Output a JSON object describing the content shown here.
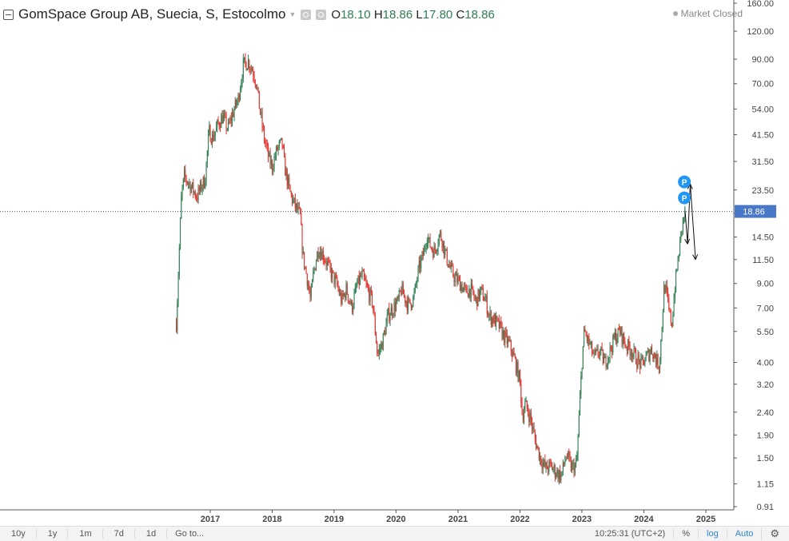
{
  "header": {
    "title": "GomSpace Group AB, Suecia, S, Estocolmo",
    "ohlc": [
      {
        "label": "O",
        "value": "18.10"
      },
      {
        "label": "H",
        "value": "18.86"
      },
      {
        "label": "L",
        "value": "17.80"
      },
      {
        "label": "C",
        "value": "18.86"
      }
    ],
    "status": "Market Closed"
  },
  "chart_data": {
    "type": "candlestick",
    "y_scale": "log",
    "y_ticks": [
      0.91,
      1.15,
      1.5,
      1.9,
      2.4,
      3.2,
      4.0,
      5.5,
      7.0,
      9.0,
      11.5,
      14.5,
      18.5,
      23.5,
      31.5,
      41.5,
      54.0,
      70.0,
      90.0,
      120.0,
      160.0
    ],
    "x_ticks": [
      {
        "label": "2017",
        "date": "2017-01-01"
      },
      {
        "label": "2018",
        "date": "2018-01-01"
      },
      {
        "label": "2019",
        "date": "2019-01-01"
      },
      {
        "label": "2020",
        "date": "2020-01-01"
      },
      {
        "label": "2021",
        "date": "2021-01-01"
      },
      {
        "label": "2022",
        "date": "2022-01-01"
      },
      {
        "label": "2023",
        "date": "2023-01-01"
      },
      {
        "label": "2024",
        "date": "2024-01-01"
      },
      {
        "label": "2025",
        "date": "2025-01-01"
      }
    ],
    "last_price": 18.86,
    "last_price_label": "18.86",
    "close_series": [
      [
        "2016-06-15",
        6.0
      ],
      [
        "2016-07-01",
        12
      ],
      [
        "2016-07-15",
        22
      ],
      [
        "2016-08-01",
        27
      ],
      [
        "2016-09-01",
        25
      ],
      [
        "2016-10-15",
        22
      ],
      [
        "2016-11-15",
        25
      ],
      [
        "2016-12-01",
        26
      ],
      [
        "2016-12-25",
        43
      ],
      [
        "2017-01-15",
        40
      ],
      [
        "2017-02-15",
        46
      ],
      [
        "2017-03-15",
        50
      ],
      [
        "2017-04-15",
        44
      ],
      [
        "2017-05-15",
        52
      ],
      [
        "2017-06-15",
        60
      ],
      [
        "2017-07-15",
        85
      ],
      [
        "2017-08-15",
        88
      ],
      [
        "2017-09-15",
        78
      ],
      [
        "2017-10-01",
        70
      ],
      [
        "2017-10-15",
        57
      ],
      [
        "2017-11-15",
        40
      ],
      [
        "2017-12-15",
        32
      ],
      [
        "2018-01-01",
        30
      ],
      [
        "2018-02-01",
        36
      ],
      [
        "2018-03-01",
        38
      ],
      [
        "2018-03-15",
        30
      ],
      [
        "2018-04-15",
        23
      ],
      [
        "2018-05-15",
        20
      ],
      [
        "2018-06-15",
        18
      ],
      [
        "2018-07-01",
        12
      ],
      [
        "2018-08-01",
        9
      ],
      [
        "2018-08-15",
        7.5
      ],
      [
        "2018-09-01",
        10
      ],
      [
        "2018-10-01",
        13
      ],
      [
        "2018-11-01",
        12
      ],
      [
        "2018-12-15",
        10
      ],
      [
        "2019-01-15",
        9
      ],
      [
        "2019-02-15",
        7.5
      ],
      [
        "2019-03-15",
        8.5
      ],
      [
        "2019-04-15",
        7.0
      ],
      [
        "2019-05-15",
        8.8
      ],
      [
        "2019-06-15",
        9.8
      ],
      [
        "2019-07-15",
        8.5
      ],
      [
        "2019-08-15",
        7.5
      ],
      [
        "2019-09-01",
        5.5
      ],
      [
        "2019-09-15",
        4.3
      ],
      [
        "2019-10-15",
        5.0
      ],
      [
        "2019-11-15",
        6.5
      ],
      [
        "2019-12-15",
        7.0
      ],
      [
        "2020-01-15",
        7.5
      ],
      [
        "2020-02-01",
        8.5
      ],
      [
        "2020-02-15",
        8.0
      ],
      [
        "2020-03-15",
        7.2
      ],
      [
        "2020-04-15",
        7.8
      ],
      [
        "2020-05-15",
        10.5
      ],
      [
        "2020-06-15",
        12.5
      ],
      [
        "2020-07-01",
        15
      ],
      [
        "2020-07-15",
        13.5
      ],
      [
        "2020-08-15",
        12.5
      ],
      [
        "2020-09-15",
        15
      ],
      [
        "2020-10-01",
        14
      ],
      [
        "2020-10-15",
        12.5
      ],
      [
        "2020-11-15",
        10.5
      ],
      [
        "2020-12-15",
        9.5
      ],
      [
        "2021-01-15",
        9
      ],
      [
        "2021-02-15",
        8.2
      ],
      [
        "2021-03-15",
        8.5
      ],
      [
        "2021-04-15",
        7.5
      ],
      [
        "2021-05-15",
        8.3
      ],
      [
        "2021-06-15",
        7.5
      ],
      [
        "2021-07-01",
        6.5
      ],
      [
        "2021-08-01",
        6.2
      ],
      [
        "2021-09-01",
        5.8
      ],
      [
        "2021-10-01",
        5.2
      ],
      [
        "2021-11-01",
        4.8
      ],
      [
        "2021-12-01",
        4.1
      ],
      [
        "2022-01-01",
        3.3
      ],
      [
        "2022-01-15",
        2.3
      ],
      [
        "2022-02-01",
        2.6
      ],
      [
        "2022-03-01",
        2.3
      ],
      [
        "2022-04-01",
        1.8
      ],
      [
        "2022-05-01",
        1.5
      ],
      [
        "2022-06-01",
        1.35
      ],
      [
        "2022-07-01",
        1.38
      ],
      [
        "2022-08-01",
        1.3
      ],
      [
        "2022-09-01",
        1.25
      ],
      [
        "2022-10-01",
        1.55
      ],
      [
        "2022-11-01",
        1.35
      ],
      [
        "2022-12-01",
        1.4
      ],
      [
        "2023-01-01",
        4.0
      ],
      [
        "2023-01-15",
        5.5
      ],
      [
        "2023-02-15",
        4.8
      ],
      [
        "2023-03-15",
        4.2
      ],
      [
        "2023-04-15",
        4.5
      ],
      [
        "2023-05-15",
        4.0
      ],
      [
        "2023-06-15",
        4.5
      ],
      [
        "2023-07-15",
        5.2
      ],
      [
        "2023-08-15",
        5.5
      ],
      [
        "2023-09-15",
        4.8
      ],
      [
        "2023-10-15",
        4.6
      ],
      [
        "2023-11-15",
        4.2
      ],
      [
        "2023-12-15",
        3.9
      ],
      [
        "2024-01-15",
        4.2
      ],
      [
        "2024-02-15",
        4.6
      ],
      [
        "2024-03-15",
        4.1
      ],
      [
        "2024-04-01",
        3.9
      ],
      [
        "2024-04-15",
        5.5
      ],
      [
        "2024-05-01",
        9.0
      ],
      [
        "2024-05-15",
        8.0
      ],
      [
        "2024-06-01",
        6.5
      ],
      [
        "2024-06-15",
        6.0
      ],
      [
        "2024-07-01",
        8.5
      ],
      [
        "2024-07-15",
        10.5
      ],
      [
        "2024-08-01",
        13.5
      ],
      [
        "2024-08-15",
        16.5
      ],
      [
        "2024-09-01",
        18.86
      ]
    ],
    "projection_points": [
      [
        "2024-09-01",
        18.86
      ],
      [
        "2024-09-15",
        13.5
      ],
      [
        "2024-10-01",
        25
      ],
      [
        "2024-11-01",
        11.5
      ]
    ],
    "marker_label": "P"
  },
  "bottom_bar": {
    "ranges": [
      "10y",
      "1y",
      "1m",
      "7d",
      "1d"
    ],
    "goto": "Go to...",
    "clock": "10:25:31 (UTC+2)",
    "percent": "%",
    "log": "log",
    "auto": "Auto"
  },
  "colors": {
    "up": "#2f7d52",
    "down": "#e0302b",
    "price_line": "#3d5a80",
    "price_label_bg": "#4a78c8",
    "marker": "#2196f3"
  }
}
